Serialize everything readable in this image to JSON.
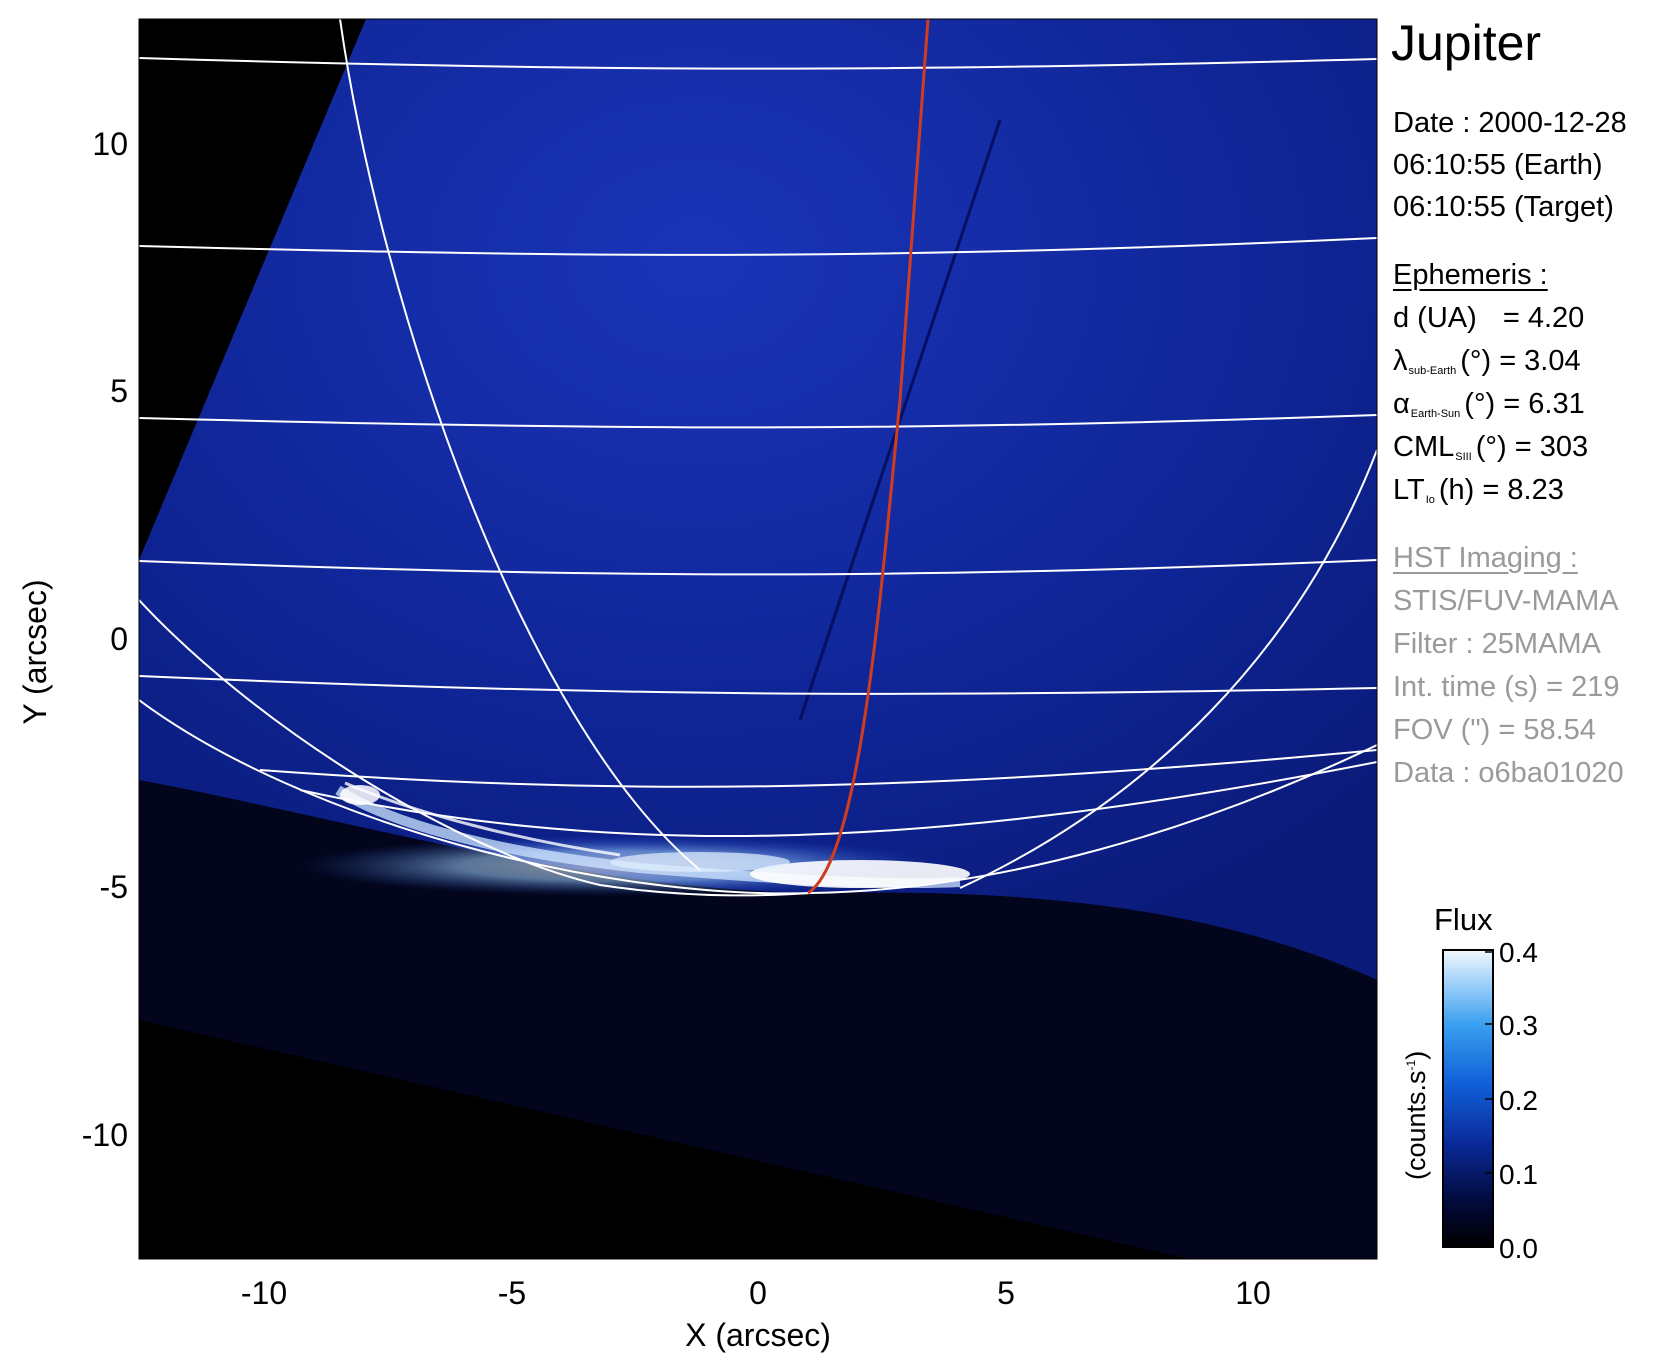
{
  "title": "Jupiter",
  "date_line": "Date : 2000-12-28",
  "time_earth": "06:10:55 (Earth)",
  "time_target": "06:10:55 (Target)",
  "ephemeris": {
    "header": "Ephemeris :",
    "d": {
      "label": "d (UA)",
      "value": "= 4.20"
    },
    "lambda": {
      "symbol": "λ",
      "sub": "sub-Earth",
      "unit": "(°)",
      "value": "= 3.04"
    },
    "alpha": {
      "symbol": "α",
      "sub": "Earth-Sun",
      "unit": "(°)",
      "value": "= 6.31"
    },
    "cml": {
      "symbol": "CML",
      "sub": "SIII",
      "unit": "(°)",
      "value": "= 303"
    },
    "lt": {
      "symbol": "LT",
      "sub": "Io",
      "unit": "(h)",
      "value": "= 8.23"
    }
  },
  "hst": {
    "header": "HST Imaging :",
    "instrument": "STIS/FUV-MAMA",
    "filter": "Filter : 25MAMA",
    "int_time": "Int. time (s) = 219",
    "fov": "FOV (\") = 58.54",
    "data": "Data : o6ba01020"
  },
  "colorbar": {
    "title": "Flux",
    "unit_base": "(counts.s",
    "unit_sup": "-1",
    "unit_close": ")",
    "ticks": [
      "0.0",
      "0.1",
      "0.2",
      "0.3",
      "0.4"
    ],
    "range": [
      0,
      0.4
    ]
  },
  "axes": {
    "xlabel": "X (arcsec)",
    "ylabel": "Y (arcsec)",
    "xticks": [
      "-10",
      "-5",
      "0",
      "5",
      "10"
    ],
    "yticks": [
      "10",
      "5",
      "0",
      "-5",
      "-10"
    ],
    "xlim": [
      -12.5,
      12.5
    ],
    "ylim": [
      -12.5,
      12.5
    ]
  },
  "colors": {
    "background_sky": "#000000",
    "disk": "#0a1d8c",
    "grid_lines": "#ffffff",
    "io_footprint": "#d23c1e",
    "aurora": "#e8f2ff"
  }
}
